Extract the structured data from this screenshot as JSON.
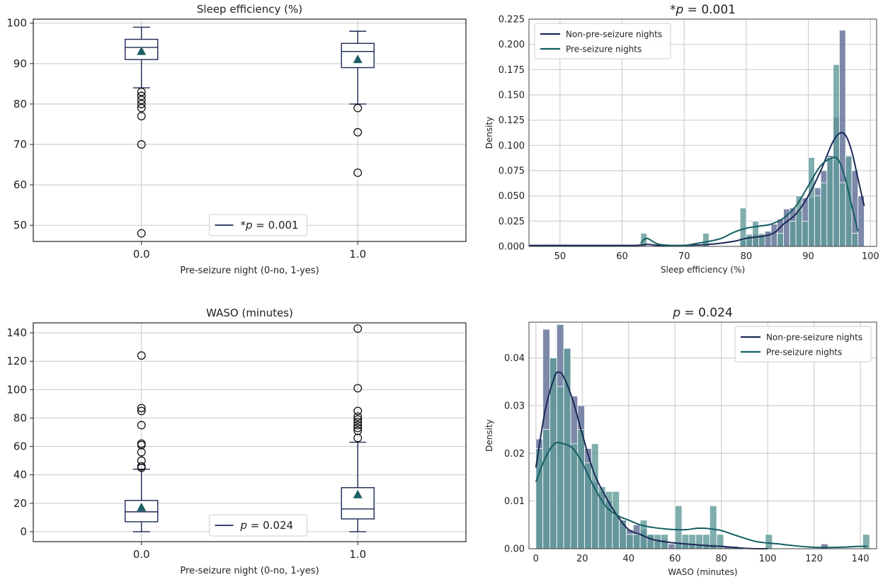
{
  "colors": {
    "non_pre": "#1b2856",
    "pre": "#135e63",
    "non_pre_bar": "#5b6b94",
    "pre_bar": "#5f9a98",
    "mean_marker": "#1b5e66",
    "box": "#1b2856"
  },
  "chart_data": [
    {
      "id": "box-se",
      "type": "box",
      "title": "Sleep efficiency (%)",
      "xlabel": "Pre-seizure night (0-no, 1-yes)",
      "ylabel": "",
      "categories": [
        "0.0",
        "1.0"
      ],
      "ylim": [
        46,
        101
      ],
      "yticks": [
        50,
        60,
        70,
        80,
        90,
        100
      ],
      "legend": {
        "label_prefix": "*",
        "label_var": "p",
        "label_value": " = 0.001",
        "position": "lower-center"
      },
      "boxes": [
        {
          "whisker_low": 84,
          "q1": 91,
          "median": 94,
          "q3": 96,
          "whisker_high": 99,
          "mean": 93,
          "outliers": [
            83,
            82,
            81,
            80,
            79,
            77,
            70,
            48
          ]
        },
        {
          "whisker_low": 80,
          "q1": 89,
          "median": 93,
          "q3": 95,
          "whisker_high": 98,
          "mean": 91,
          "outliers": [
            79,
            73,
            63
          ]
        }
      ]
    },
    {
      "id": "hist-se",
      "type": "histogram",
      "title_prefix": "*",
      "title_var": "p",
      "title_value": " = 0.001",
      "xlabel": "Sleep efficiency (%)",
      "ylabel": "Density",
      "xlim": [
        45,
        101
      ],
      "ylim": [
        0,
        0.225
      ],
      "xticks": [
        50,
        60,
        70,
        80,
        90,
        100
      ],
      "yticks": [
        0.0,
        0.025,
        0.05,
        0.075,
        0.1,
        0.125,
        0.15,
        0.175,
        0.2,
        0.225
      ],
      "ytick_labels": [
        "0.000",
        "0.025",
        "0.050",
        "0.075",
        "0.100",
        "0.125",
        "0.150",
        "0.175",
        "0.200",
        "0.225"
      ],
      "legend": {
        "entries": [
          "Non-pre-seizure nights",
          "Pre-seizure nights"
        ],
        "position": "upper-left"
      },
      "series": [
        {
          "name": "Non-pre-seizure nights",
          "bins": [
            [
              48,
              49,
              0.002
            ],
            [
              79,
              80,
              0.006
            ],
            [
              80,
              81,
              0.01
            ],
            [
              81,
              82,
              0.012
            ],
            [
              82,
              83,
              0.013
            ],
            [
              83,
              84,
              0.015
            ],
            [
              84,
              85,
              0.022
            ],
            [
              85,
              86,
              0.027
            ],
            [
              86,
              87,
              0.037
            ],
            [
              87,
              88,
              0.038
            ],
            [
              88,
              89,
              0.035
            ],
            [
              89,
              90,
              0.048
            ],
            [
              90,
              91,
              0.048
            ],
            [
              91,
              92,
              0.058
            ],
            [
              92,
              93,
              0.075
            ],
            [
              93,
              94,
              0.09
            ],
            [
              94,
              95,
              0.128
            ],
            [
              95,
              96,
              0.214
            ],
            [
              96,
              97,
              0.09
            ],
            [
              97,
              98,
              0.075
            ],
            [
              98,
              99,
              0.05
            ]
          ],
          "kde_x": [
            45,
            55,
            62,
            64,
            66,
            70,
            74,
            78,
            80,
            84,
            86,
            88,
            90,
            92,
            93,
            94,
            95,
            96,
            97,
            98,
            99
          ],
          "kde_y": [
            0.001,
            0.001,
            0.001,
            0.002,
            0.001,
            0.001,
            0.002,
            0.005,
            0.008,
            0.012,
            0.022,
            0.032,
            0.05,
            0.075,
            0.09,
            0.104,
            0.112,
            0.11,
            0.094,
            0.067,
            0.04
          ]
        },
        {
          "name": "Pre-seizure nights",
          "bins": [
            [
              63,
              64,
              0.013
            ],
            [
              73,
              74,
              0.013
            ],
            [
              79,
              80,
              0.038
            ],
            [
              80,
              81,
              0.012
            ],
            [
              81,
              82,
              0.025
            ],
            [
              82,
              83,
              0.012
            ],
            [
              85,
              86,
              0.013
            ],
            [
              87,
              88,
              0.025
            ],
            [
              88,
              89,
              0.05
            ],
            [
              89,
              90,
              0.025
            ],
            [
              90,
              91,
              0.088
            ],
            [
              91,
              92,
              0.05
            ],
            [
              92,
              93,
              0.063
            ],
            [
              93,
              94,
              0.088
            ],
            [
              94,
              95,
              0.18
            ],
            [
              95,
              96,
              0.063
            ],
            [
              96,
              97,
              0.089
            ],
            [
              97,
              98,
              0.013
            ]
          ],
          "kde_x": [
            63,
            64,
            66,
            70,
            72,
            74,
            76,
            78,
            80,
            82,
            84,
            86,
            88,
            90,
            92,
            94,
            95,
            96,
            97,
            98
          ],
          "kde_y": [
            0.003,
            0.008,
            0.002,
            0.001,
            0.003,
            0.005,
            0.008,
            0.014,
            0.018,
            0.02,
            0.022,
            0.028,
            0.04,
            0.06,
            0.08,
            0.088,
            0.084,
            0.066,
            0.04,
            0.015
          ]
        }
      ]
    },
    {
      "id": "box-waso",
      "type": "box",
      "title": "WASO (minutes)",
      "xlabel": "Pre-seizure night (0-no, 1-yes)",
      "ylabel": "",
      "categories": [
        "0.0",
        "1.0"
      ],
      "ylim": [
        -7,
        147
      ],
      "yticks": [
        0,
        20,
        40,
        60,
        80,
        100,
        120,
        140
      ],
      "legend": {
        "label_prefix": "",
        "label_var": "p",
        "label_value": " = 0.024",
        "position": "lower-center"
      },
      "boxes": [
        {
          "whisker_low": 0,
          "q1": 7,
          "median": 14,
          "q3": 22,
          "whisker_high": 44,
          "mean": 17,
          "outliers": [
            124,
            87,
            85,
            75,
            62,
            61,
            56,
            50,
            46,
            45
          ]
        },
        {
          "whisker_low": 0,
          "q1": 9,
          "median": 16,
          "q3": 31,
          "whisker_high": 63,
          "mean": 26,
          "outliers": [
            143,
            101,
            85,
            81,
            79,
            77,
            75,
            73,
            71,
            66
          ]
        }
      ]
    },
    {
      "id": "hist-waso",
      "type": "histogram",
      "title_prefix": "",
      "title_var": "p",
      "title_value": " = 0.024",
      "xlabel": "WASO (minutes)",
      "ylabel": "Density",
      "xlim": [
        -3,
        147
      ],
      "ylim": [
        0,
        0.0475
      ],
      "xticks": [
        0,
        20,
        40,
        60,
        80,
        100,
        120,
        140
      ],
      "yticks": [
        0.0,
        0.01,
        0.02,
        0.03,
        0.04
      ],
      "ytick_labels": [
        "0.00",
        "0.01",
        "0.02",
        "0.03",
        "0.04"
      ],
      "legend": {
        "entries": [
          "Non-pre-seizure nights",
          "Pre-seizure nights"
        ],
        "position": "upper-right"
      },
      "series": [
        {
          "name": "Non-pre-seizure nights",
          "bins": [
            [
              0,
              3,
              0.023
            ],
            [
              3,
              6,
              0.046
            ],
            [
              6,
              9,
              0.04
            ],
            [
              9,
              12,
              0.047
            ],
            [
              12,
              15,
              0.042
            ],
            [
              15,
              18,
              0.032
            ],
            [
              18,
              21,
              0.03
            ],
            [
              21,
              24,
              0.021
            ],
            [
              24,
              27,
              0.014
            ],
            [
              27,
              30,
              0.012
            ],
            [
              30,
              33,
              0.01
            ],
            [
              33,
              36,
              0.007
            ],
            [
              36,
              39,
              0.006
            ],
            [
              39,
              42,
              0.004
            ],
            [
              42,
              45,
              0.005
            ],
            [
              45,
              48,
              0.004
            ],
            [
              48,
              51,
              0.003
            ],
            [
              51,
              54,
              0.002
            ],
            [
              54,
              57,
              0.002
            ],
            [
              57,
              60,
              0.001
            ],
            [
              60,
              63,
              0.001
            ],
            [
              63,
              66,
              0.001
            ],
            [
              66,
              69,
              0.001
            ],
            [
              69,
              72,
              0.001
            ],
            [
              72,
              75,
              0.001
            ],
            [
              75,
              78,
              0.001
            ],
            [
              81,
              84,
              0.0005
            ],
            [
              84,
              87,
              0.0005
            ],
            [
              123,
              126,
              0.001
            ]
          ],
          "kde_x": [
            0,
            4,
            8,
            10,
            12,
            16,
            20,
            25,
            30,
            35,
            40,
            45,
            50,
            55,
            60,
            65,
            70,
            75,
            80,
            85,
            90,
            95,
            100
          ],
          "kde_y": [
            0.017,
            0.029,
            0.036,
            0.037,
            0.036,
            0.031,
            0.024,
            0.016,
            0.011,
            0.007,
            0.004,
            0.003,
            0.002,
            0.0015,
            0.0012,
            0.001,
            0.0008,
            0.0006,
            0.0005,
            0.0003,
            0.0001,
            0.0,
            0.0
          ]
        },
        {
          "name": "Pre-seizure nights",
          "bins": [
            [
              0,
              3,
              0.021
            ],
            [
              3,
              6,
              0.025
            ],
            [
              6,
              9,
              0.04
            ],
            [
              9,
              12,
              0.034
            ],
            [
              12,
              15,
              0.042
            ],
            [
              15,
              18,
              0.022
            ],
            [
              18,
              21,
              0.025
            ],
            [
              21,
              24,
              0.018
            ],
            [
              24,
              27,
              0.022
            ],
            [
              27,
              30,
              0.013
            ],
            [
              30,
              33,
              0.012
            ],
            [
              33,
              36,
              0.012
            ],
            [
              36,
              39,
              0.006
            ],
            [
              39,
              42,
              0.003
            ],
            [
              42,
              45,
              0.003
            ],
            [
              45,
              48,
              0.006
            ],
            [
              48,
              51,
              0.003
            ],
            [
              51,
              54,
              0.003
            ],
            [
              54,
              57,
              0.003
            ],
            [
              60,
              63,
              0.009
            ],
            [
              63,
              66,
              0.003
            ],
            [
              66,
              69,
              0.003
            ],
            [
              69,
              72,
              0.003
            ],
            [
              72,
              75,
              0.003
            ],
            [
              75,
              78,
              0.009
            ],
            [
              78,
              81,
              0.003
            ],
            [
              99,
              102,
              0.003
            ],
            [
              141,
              144,
              0.003
            ]
          ],
          "kde_x": [
            0,
            4,
            8,
            12,
            16,
            20,
            25,
            30,
            35,
            40,
            45,
            50,
            55,
            60,
            65,
            70,
            75,
            80,
            85,
            90,
            95,
            100,
            105,
            110,
            120,
            130,
            140,
            143
          ],
          "kde_y": [
            0.014,
            0.019,
            0.022,
            0.022,
            0.021,
            0.018,
            0.013,
            0.009,
            0.007,
            0.006,
            0.005,
            0.0045,
            0.0042,
            0.004,
            0.004,
            0.0043,
            0.0042,
            0.0038,
            0.003,
            0.0022,
            0.0015,
            0.0012,
            0.001,
            0.0007,
            0.0003,
            0.0003,
            0.0005,
            0.0005
          ]
        }
      ]
    }
  ]
}
